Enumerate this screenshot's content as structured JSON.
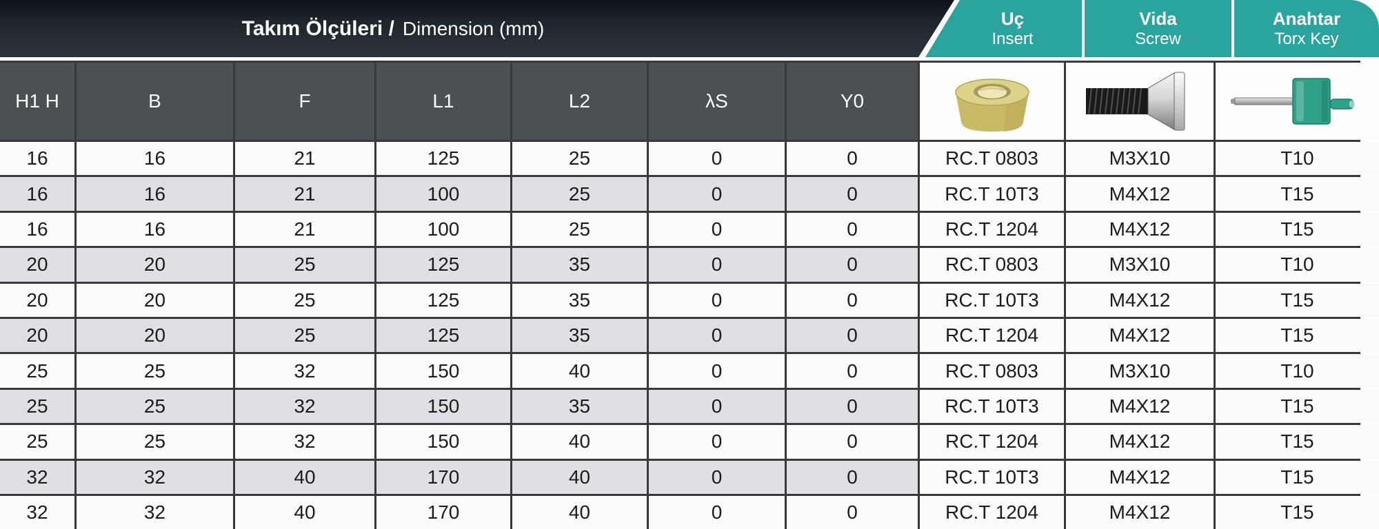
{
  "header": {
    "title_bold": "Takım Ölçüleri /",
    "title_regular": "Dimension (mm)",
    "tool_columns": [
      {
        "tr": "Uç",
        "en": "Insert"
      },
      {
        "tr": "Vida",
        "en": "Screw"
      },
      {
        "tr": "Anahtar",
        "en": "Torx Key"
      }
    ]
  },
  "table": {
    "dimension_headers": [
      "H1 H",
      "B",
      "F",
      "L1",
      "L2",
      "λS",
      "Y0"
    ],
    "image_headers": [
      "round-insert-photo",
      "torx-screw-photo",
      "torx-key-photo"
    ],
    "column_keys": [
      "h1h",
      "b",
      "f",
      "l1",
      "l2",
      "lambda-s",
      "y0",
      "insert",
      "screw",
      "torx-key"
    ],
    "rows": [
      [
        "16",
        "16",
        "21",
        "125",
        "25",
        "0",
        "0",
        "RC.T 0803",
        "M3X10",
        "T10"
      ],
      [
        "16",
        "16",
        "21",
        "100",
        "25",
        "0",
        "0",
        "RC.T 10T3",
        "M4X12",
        "T15"
      ],
      [
        "16",
        "16",
        "21",
        "100",
        "25",
        "0",
        "0",
        "RC.T 1204",
        "M4X12",
        "T15"
      ],
      [
        "20",
        "20",
        "25",
        "125",
        "35",
        "0",
        "0",
        "RC.T 0803",
        "M3X10",
        "T10"
      ],
      [
        "20",
        "20",
        "25",
        "125",
        "35",
        "0",
        "0",
        "RC.T 10T3",
        "M4X12",
        "T15"
      ],
      [
        "20",
        "20",
        "25",
        "125",
        "35",
        "0",
        "0",
        "RC.T 1204",
        "M4X12",
        "T15"
      ],
      [
        "25",
        "25",
        "32",
        "150",
        "40",
        "0",
        "0",
        "RC.T 0803",
        "M3X10",
        "T10"
      ],
      [
        "25",
        "25",
        "32",
        "150",
        "35",
        "0",
        "0",
        "RC.T 10T3",
        "M4X12",
        "T15"
      ],
      [
        "25",
        "25",
        "32",
        "150",
        "40",
        "0",
        "0",
        "RC.T 1204",
        "M4X12",
        "T15"
      ],
      [
        "32",
        "32",
        "40",
        "170",
        "40",
        "0",
        "0",
        "RC.T 10T3",
        "M4X12",
        "T15"
      ],
      [
        "32",
        "32",
        "40",
        "170",
        "40",
        "0",
        "0",
        "RC.T 1204",
        "M4X12",
        "T15"
      ]
    ]
  },
  "colors": {
    "teal_accent": "#2aa49d",
    "title_bar_dark": "#1d272b",
    "header_cell_gray": "#4b5055",
    "alt_row": "#dfe0e3",
    "grid_line": "#39393c",
    "insert_gold": "#d6c97e",
    "key_green": "#2fa189"
  }
}
